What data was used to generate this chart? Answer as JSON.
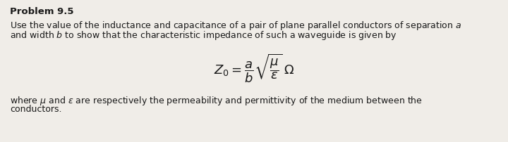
{
  "title": "Problem 9.5",
  "line1": "Use the value of the inductance and capacitance of a pair of plane parallel conductors of separation $a$",
  "line2": "and width $b$ to show that the characteristic impedance of such a waveguide is given by",
  "formula": "$Z_0 = \\dfrac{a}{b}\\sqrt{\\dfrac{\\mu}{\\varepsilon}}\\;\\Omega$",
  "footer1": "where $\\mu$ and $\\varepsilon$ are respectively the permeability and permittivity of the medium between the",
  "footer2": "conductors.",
  "bg_color": "#f0ede8",
  "text_color": "#1a1a1a",
  "font_size_title": 9.5,
  "font_size_body": 9.0,
  "font_size_formula": 13,
  "font_size_footer": 9.0
}
